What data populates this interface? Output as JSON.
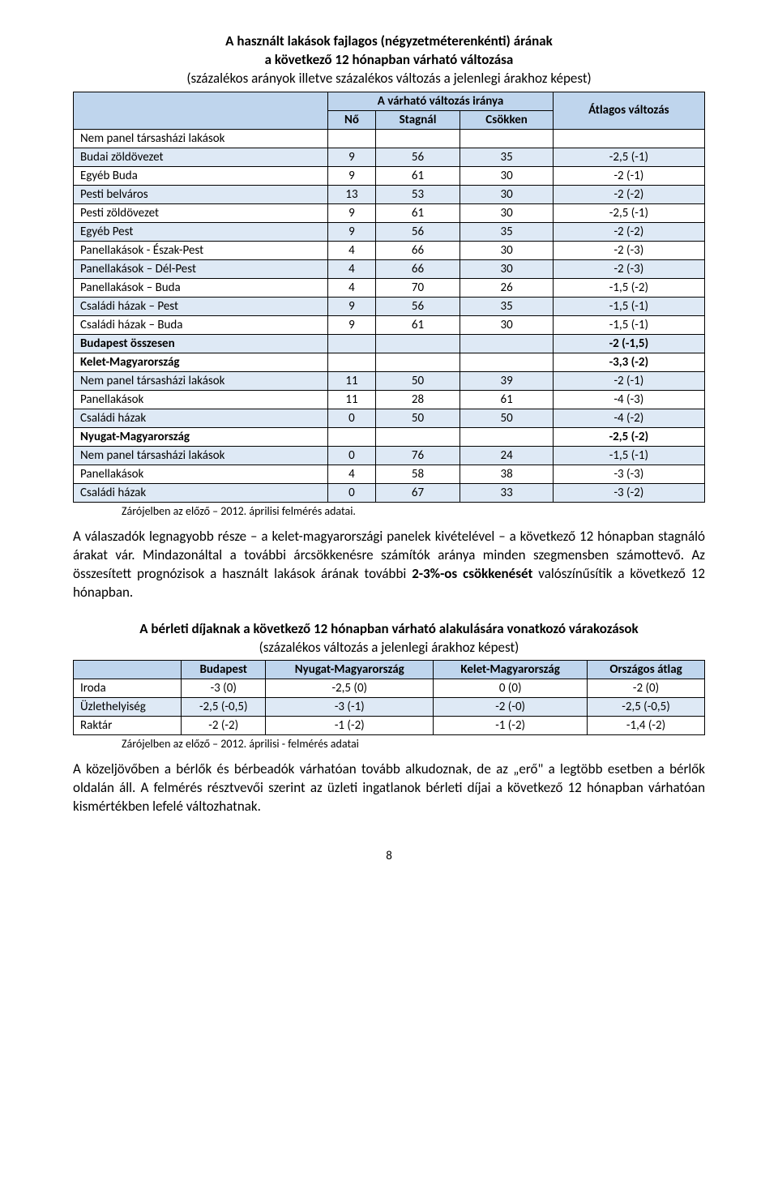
{
  "table1": {
    "title_line1": "A használt lakások fajlagos (négyzetméterenkénti) árának",
    "title_line2": "a következő 12 hónapban várható változása",
    "title_line3": "(százalékos arányok illetve százalékos változás a jelenlegi árakhoz képest)",
    "header_group": "A várható változás iránya",
    "header_no": "Nő",
    "header_stagnal": "Stagnál",
    "header_csokken": "Csökken",
    "header_atlagos": "Átlagos változás",
    "rows": [
      {
        "label": "Nem panel társasházi lakások",
        "no": "",
        "st": "",
        "cs": "",
        "av": "",
        "alt": false,
        "bold": false
      },
      {
        "label": "Budai zöldövezet",
        "no": "9",
        "st": "56",
        "cs": "35",
        "av": "-2,5 (-1)",
        "alt": true,
        "bold": false
      },
      {
        "label": "Egyéb Buda",
        "no": "9",
        "st": "61",
        "cs": "30",
        "av": "-2 (-1)",
        "alt": false,
        "bold": false
      },
      {
        "label": "Pesti belváros",
        "no": "13",
        "st": "53",
        "cs": "30",
        "av": "-2 (-2)",
        "alt": true,
        "bold": false
      },
      {
        "label": "Pesti zöldövezet",
        "no": "9",
        "st": "61",
        "cs": "30",
        "av": "-2,5 (-1)",
        "alt": false,
        "bold": false
      },
      {
        "label": "Egyéb Pest",
        "no": "9",
        "st": "56",
        "cs": "35",
        "av": "-2 (-2)",
        "alt": true,
        "bold": false
      },
      {
        "label": "Panellakások - Észak-Pest",
        "no": "4",
        "st": "66",
        "cs": "30",
        "av": "-2 (-3)",
        "alt": false,
        "bold": false
      },
      {
        "label": "Panellakások – Dél-Pest",
        "no": "4",
        "st": "66",
        "cs": "30",
        "av": "-2 (-3)",
        "alt": true,
        "bold": false
      },
      {
        "label": "Panellakások – Buda",
        "no": "4",
        "st": "70",
        "cs": "26",
        "av": "-1,5 (-2)",
        "alt": false,
        "bold": false
      },
      {
        "label": "Családi házak – Pest",
        "no": "9",
        "st": "56",
        "cs": "35",
        "av": "-1,5 (-1)",
        "alt": true,
        "bold": false
      },
      {
        "label": "Családi házak – Buda",
        "no": "9",
        "st": "61",
        "cs": "30",
        "av": "-1,5 (-1)",
        "alt": false,
        "bold": false
      },
      {
        "label": "Budapest összesen",
        "no": "",
        "st": "",
        "cs": "",
        "av": "-2 (-1,5)",
        "alt": true,
        "bold": true
      },
      {
        "label": "Kelet-Magyarország",
        "no": "",
        "st": "",
        "cs": "",
        "av": "-3,3 (-2)",
        "alt": false,
        "bold": true
      },
      {
        "label": "Nem panel társasházi lakások",
        "no": "11",
        "st": "50",
        "cs": "39",
        "av": "-2 (-1)",
        "alt": true,
        "bold": false
      },
      {
        "label": "Panellakások",
        "no": "11",
        "st": "28",
        "cs": "61",
        "av": "-4 (-3)",
        "alt": false,
        "bold": false
      },
      {
        "label": "Családi házak",
        "no": "0",
        "st": "50",
        "cs": "50",
        "av": "-4 (-2)",
        "alt": true,
        "bold": false
      },
      {
        "label": "Nyugat-Magyarország",
        "no": "",
        "st": "",
        "cs": "",
        "av": "-2,5 (-2)",
        "alt": false,
        "bold": true
      },
      {
        "label": "Nem panel társasházi lakások",
        "no": "0",
        "st": "76",
        "cs": "24",
        "av": "-1,5 (-1)",
        "alt": true,
        "bold": false
      },
      {
        "label": "Panellakások",
        "no": "4",
        "st": "58",
        "cs": "38",
        "av": "-3 (-3)",
        "alt": false,
        "bold": false
      },
      {
        "label": "Családi házak",
        "no": "0",
        "st": "67",
        "cs": "33",
        "av": "-3 (-2)",
        "alt": true,
        "bold": false
      }
    ],
    "footnote": "Zárójelben az előző – 2012. áprilisi felmérés adatai."
  },
  "para1_html": "A válaszadók legnagyobb része – a kelet-magyarországi panelek kivételével – a következő 12 hónapban stagnáló árakat vár. Mindazonáltal a további árcsökkenésre számítók aránya minden szegmensben számottevő. Az összesített prognózisok a használt lakások árának további <b>2-3%-os csökkenését</b> valószínűsítik a következő 12 hónapban.",
  "table2": {
    "title_line1": "A bérleti díjaknak a következő 12 hónapban várható alakulására vonatkozó várakozások",
    "title_line2": "(százalékos változás a jelenlegi árakhoz képest)",
    "header_budapest": "Budapest",
    "header_nyugat": "Nyugat-Magyarország",
    "header_kelet": "Kelet-Magyarország",
    "header_orszagos": "Országos átlag",
    "rows": [
      {
        "label": "Iroda",
        "bp": "-3 (0)",
        "ny": "-2,5 (0)",
        "ke": "0 (0)",
        "or": "-2 (0)",
        "alt": false
      },
      {
        "label": "Üzlethelyiség",
        "bp": "-2,5 (-0,5)",
        "ny": "-3 (-1)",
        "ke": "-2 (-0)",
        "or": "-2,5 (-0,5)",
        "alt": true
      },
      {
        "label": "Raktár",
        "bp": "-2 (-2)",
        "ny": "-1 (-2)",
        "ke": "-1 (-2)",
        "or": "-1,4 (-2)",
        "alt": false
      }
    ],
    "footnote": "Zárójelben az előző – 2012. áprilisi - felmérés adatai"
  },
  "para2": "A közeljövőben a bérlők és bérbeadók várhatóan tovább alkudoznak, de az „erő\" a legtöbb esetben a bérlők oldalán áll. A felmérés résztvevői szerint az üzleti ingatlanok bérleti díjai a következő 12 hónapban várhatóan kismértékben lefelé változhatnak.",
  "page_number": "8",
  "colors": {
    "header_bg": "#bfd5ed",
    "alt_bg": "#dee9f5",
    "border": "#000000",
    "text": "#000000",
    "background": "#ffffff"
  }
}
